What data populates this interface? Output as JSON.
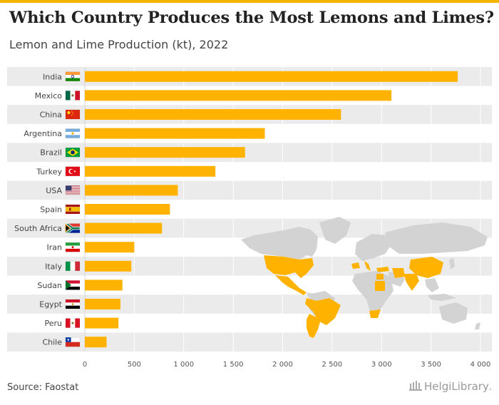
{
  "header": {
    "title": "Which Country Produces the Most Lemons and Limes?",
    "subtitle": "Lemon and Lime Production (kt), 2022"
  },
  "footer": {
    "source": "Source: Faostat",
    "logo_main": "HelgiLibrary",
    "logo_suffix": "."
  },
  "colors": {
    "bar": "#ffb300",
    "band": "#ebebeb",
    "land": "#d3d3d3",
    "highlight": "#ffb300",
    "accent_bar": "#f5b400"
  },
  "icons": {
    "logo": "library-columns-icon",
    "map": "world-map"
  },
  "chart_data": {
    "type": "bar",
    "orientation": "horizontal",
    "title": "Which Country Produces the Most Lemons and Limes?",
    "subtitle": "Lemon and Lime Production (kt), 2022",
    "categories": [
      "India",
      "Mexico",
      "China",
      "Argentina",
      "Brazil",
      "Turkey",
      "USA",
      "Spain",
      "South Africa",
      "Iran",
      "Italy",
      "Sudan",
      "Egypt",
      "Peru",
      "Chile"
    ],
    "values": [
      3770,
      3100,
      2590,
      1820,
      1620,
      1320,
      940,
      860,
      780,
      500,
      470,
      380,
      360,
      340,
      220
    ],
    "flags": [
      "india",
      "mexico",
      "china",
      "argentina",
      "brazil",
      "turkey",
      "usa",
      "spain",
      "south-africa",
      "iran",
      "italy",
      "sudan",
      "egypt",
      "peru",
      "chile"
    ],
    "xlim": [
      0,
      4000
    ],
    "xticks": [
      0,
      500,
      1000,
      1500,
      2000,
      2500,
      3000,
      3500,
      4000
    ],
    "xtick_labels": [
      "0",
      "500",
      "1 000",
      "1 500",
      "2 000",
      "2 500",
      "3 000",
      "3 500",
      "4 000"
    ],
    "grid": true,
    "legend": "none"
  }
}
